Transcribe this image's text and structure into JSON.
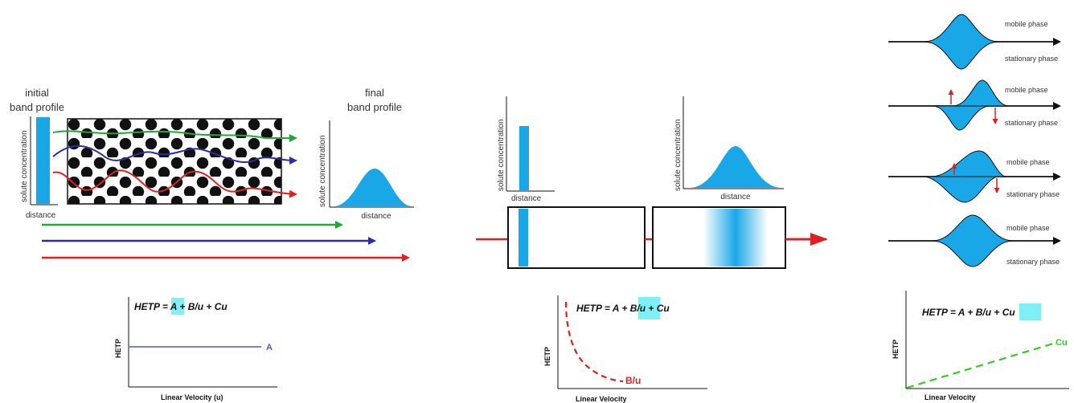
{
  "colors": {
    "band_blue": "#1aa7e8",
    "highlight": "#7ff0f6",
    "green": "#22a83a",
    "navy": "#2b2f9e",
    "red": "#e02020",
    "a_line": "#4a55d6",
    "dashed_green": "#33cc22"
  },
  "panel_a": {
    "initial_label_1": "initial",
    "initial_label_2": "band profile",
    "final_label_1": "final",
    "final_label_2": "band profile",
    "y_axis_label": "solute concentration",
    "x_axis_label_initial": "distance",
    "y_axis_label_final": "solute concentration",
    "x_axis_label_final": "distance"
  },
  "panel_b": {
    "y_axis_label_left": "solute concentration",
    "x_axis_label_left": "distance",
    "y_axis_label_right": "solute concentration",
    "x_axis_label_right": "distance"
  },
  "panel_c": {
    "mobile_phase": "mobile phase",
    "stationary_phase": "stationary phase"
  },
  "graphs": [
    {
      "eq_prefix": "HETP = ",
      "eq_term_a": "A",
      "eq_plus_1": " + ",
      "eq_term_b": "B/u",
      "eq_plus_2": " + ",
      "eq_term_c": "Cu",
      "highlight_term": "A",
      "ylabel": "HETP",
      "xlabel": "Linear Velocity  (u)",
      "curve_label": "A"
    },
    {
      "eq_prefix": "HETP = ",
      "eq_term_a": "A",
      "eq_plus_1": " + ",
      "eq_term_b": "B/u",
      "eq_plus_2": " + ",
      "eq_term_c": "Cu",
      "highlight_term": "B/u",
      "ylabel": "HETP",
      "xlabel": "Linear Velocity",
      "curve_label": "B/u"
    },
    {
      "eq_prefix": "HETP = ",
      "eq_term_a": "A",
      "eq_plus_1": "  + ",
      "eq_term_b": "B/u",
      "eq_plus_2": " + ",
      "eq_term_c": "Cu",
      "highlight_term": "Cu",
      "ylabel": "HETP",
      "xlabel": "Linear Velocity",
      "curve_label": "Cu"
    }
  ]
}
